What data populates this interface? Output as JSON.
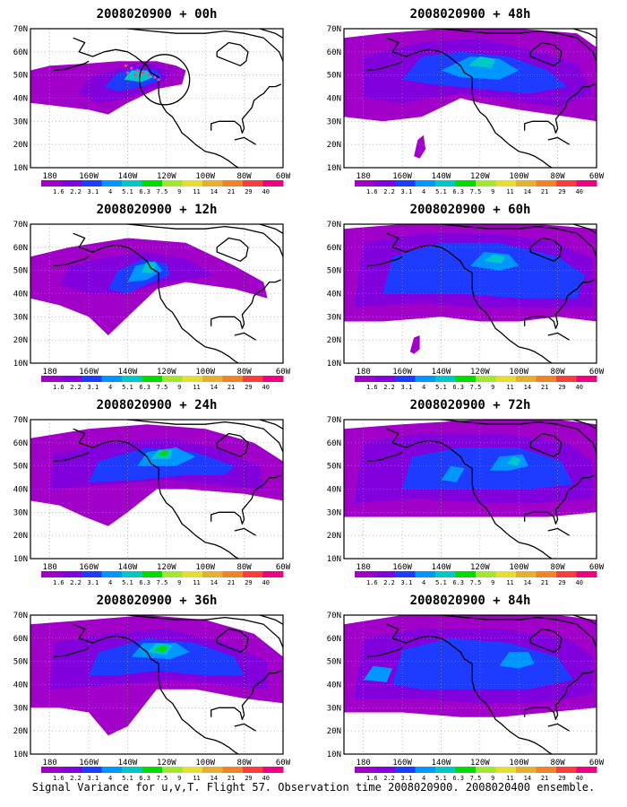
{
  "panels": [
    {
      "title": "2008020900 + 00h"
    },
    {
      "title": "2008020900 + 48h"
    },
    {
      "title": "2008020900 + 12h"
    },
    {
      "title": "2008020900 + 60h"
    },
    {
      "title": "2008020900 + 24h"
    },
    {
      "title": "2008020900 + 72h"
    },
    {
      "title": "2008020900 + 36h"
    },
    {
      "title": "2008020900 + 84h"
    }
  ],
  "lat_labels": [
    "10N",
    "20N",
    "30N",
    "40N",
    "50N",
    "60N",
    "70N"
  ],
  "lon_labels": [
    "180",
    "160W",
    "140W",
    "120W",
    "100W",
    "80W",
    "60W"
  ],
  "colorbar": {
    "labels": [
      "1.6",
      "2.2",
      "3.1",
      "4",
      "5.1",
      "6.3",
      "7.5",
      "9",
      "11",
      "14",
      "21",
      "29",
      "40"
    ],
    "colors": [
      "#a000c8",
      "#8200dc",
      "#1e3cff",
      "#0096ff",
      "#00c8c8",
      "#00dc00",
      "#a0e632",
      "#e6dc32",
      "#e6af2d",
      "#f08228",
      "#fa3c3c",
      "#f00082"
    ]
  },
  "fill_colors": {
    "level1": "#a000c8",
    "level2": "#8200dc",
    "level3": "#1e3cff",
    "level4": "#0096ff",
    "level5": "#00c8c8",
    "level6": "#00dc00"
  },
  "footer": "Signal Variance for u,v,T. Flight 57. Observation time 2008020900. 2008020400 ensemble."
}
